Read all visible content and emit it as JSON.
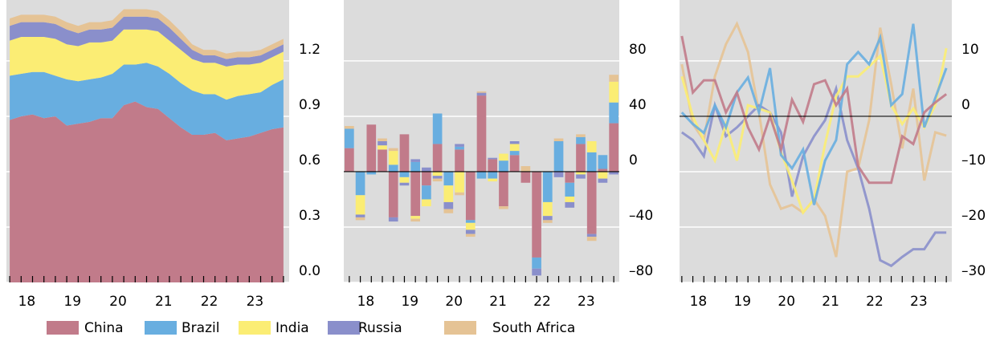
{
  "chart_data": [
    {
      "type": "stacked-area",
      "grid": true,
      "x": [
        2018.125,
        2018.375,
        2018.625,
        2018.875,
        2019.125,
        2019.375,
        2019.625,
        2019.875,
        2020.125,
        2020.375,
        2020.625,
        2020.875,
        2021.125,
        2021.375,
        2021.625,
        2021.875,
        2022.125,
        2022.375,
        2022.625,
        2022.875,
        2023.125,
        2023.375,
        2023.625,
        2023.875,
        2024.125
      ],
      "xlim": [
        2018,
        2024.25
      ],
      "xticks": [
        {
          "value": 2018.5,
          "label": "18"
        },
        {
          "value": 2019.5,
          "label": "19"
        },
        {
          "value": 2020.5,
          "label": "20"
        },
        {
          "value": 2021.5,
          "label": "21"
        },
        {
          "value": 2022.5,
          "label": "22"
        },
        {
          "value": 2023.5,
          "label": "23"
        }
      ],
      "ylim": [
        0,
        1.53
      ],
      "yticks": [
        {
          "value": 0,
          "label": "0.0"
        },
        0.3,
        0.6,
        0.9,
        1.2
      ],
      "series": [
        {
          "name": "China",
          "color": "#c17b8a",
          "values": [
            0.88,
            0.9,
            0.91,
            0.89,
            0.9,
            0.85,
            0.86,
            0.87,
            0.89,
            0.89,
            0.96,
            0.98,
            0.95,
            0.94,
            0.89,
            0.84,
            0.8,
            0.8,
            0.81,
            0.77,
            0.78,
            0.79,
            0.81,
            0.83,
            0.84
          ]
        },
        {
          "name": "Brazil",
          "color": "#68aee0",
          "values": [
            0.24,
            0.23,
            0.23,
            0.25,
            0.22,
            0.25,
            0.23,
            0.23,
            0.22,
            0.24,
            0.22,
            0.2,
            0.24,
            0.23,
            0.24,
            0.24,
            0.24,
            0.22,
            0.21,
            0.22,
            0.23,
            0.23,
            0.22,
            0.24,
            0.26
          ]
        },
        {
          "name": "India",
          "color": "#fbed74",
          "values": [
            0.19,
            0.2,
            0.19,
            0.19,
            0.2,
            0.19,
            0.19,
            0.2,
            0.19,
            0.18,
            0.19,
            0.19,
            0.18,
            0.19,
            0.18,
            0.18,
            0.17,
            0.17,
            0.17,
            0.18,
            0.17,
            0.16,
            0.16,
            0.15,
            0.15
          ]
        },
        {
          "name": "Russia",
          "color": "#8a8fcb",
          "values": [
            0.08,
            0.08,
            0.08,
            0.08,
            0.08,
            0.08,
            0.07,
            0.07,
            0.07,
            0.07,
            0.07,
            0.07,
            0.07,
            0.07,
            0.07,
            0.06,
            0.05,
            0.04,
            0.04,
            0.04,
            0.04,
            0.04,
            0.04,
            0.04,
            0.04
          ]
        },
        {
          "name": "South Africa",
          "color": "#e5c395",
          "values": [
            0.04,
            0.04,
            0.04,
            0.04,
            0.04,
            0.04,
            0.04,
            0.04,
            0.04,
            0.04,
            0.04,
            0.04,
            0.04,
            0.04,
            0.04,
            0.04,
            0.03,
            0.03,
            0.03,
            0.03,
            0.03,
            0.03,
            0.03,
            0.03,
            0.03
          ]
        }
      ]
    },
    {
      "type": "stacked-bar",
      "grid": true,
      "zero_line": true,
      "x": [
        2018.125,
        2018.375,
        2018.625,
        2018.875,
        2019.125,
        2019.375,
        2019.625,
        2019.875,
        2020.125,
        2020.375,
        2020.625,
        2020.875,
        2021.125,
        2021.375,
        2021.625,
        2021.875,
        2022.125,
        2022.375,
        2022.625,
        2022.875,
        2023.125,
        2023.375,
        2023.625,
        2023.875,
        2024.125
      ],
      "xlim": [
        2018,
        2024.25
      ],
      "xticks": [
        {
          "value": 2018.5,
          "label": "18"
        },
        {
          "value": 2019.5,
          "label": "19"
        },
        {
          "value": 2020.5,
          "label": "20"
        },
        {
          "value": 2021.5,
          "label": "21"
        },
        {
          "value": 2022.5,
          "label": "22"
        },
        {
          "value": 2023.5,
          "label": "23"
        }
      ],
      "ylim": [
        -80,
        124
      ],
      "yticks": [
        {
          "value": -80,
          "label": "–80"
        },
        {
          "value": -40,
          "label": "–40"
        },
        0,
        40,
        80
      ],
      "series": [
        {
          "color": "#c17b8a",
          "values": [
            17,
            0,
            34,
            16,
            -33,
            27,
            -32,
            -10,
            20,
            0,
            16,
            -35,
            55,
            9,
            -25,
            12,
            -8,
            -62,
            0,
            0,
            -8,
            20,
            -45,
            2,
            35
          ]
        },
        {
          "color": "#68aee0",
          "values": [
            14,
            -17,
            -2,
            0,
            5,
            -4,
            7,
            -10,
            22,
            -10,
            2,
            -2,
            -5,
            -5,
            8,
            3,
            0,
            -8,
            -22,
            22,
            -10,
            5,
            14,
            10,
            15
          ]
        },
        {
          "color": "#fbed74",
          "values": [
            0,
            -14,
            0,
            3,
            10,
            -4,
            -2,
            -5,
            -3,
            -12,
            -15,
            -5,
            0,
            -2,
            5,
            5,
            0,
            0,
            -10,
            0,
            -4,
            -2,
            8,
            -5,
            15
          ]
        },
        {
          "color": "#8a8fcb",
          "values": [
            0,
            -2,
            0,
            3,
            -3,
            -2,
            2,
            3,
            -2,
            -5,
            2,
            -3,
            2,
            1,
            0,
            2,
            0,
            -5,
            -3,
            -4,
            -4,
            -3,
            -2,
            -3,
            -2
          ]
        },
        {
          "color": "#e5c395",
          "values": [
            2,
            -2,
            0,
            2,
            2,
            0,
            -2,
            0,
            -2,
            -3,
            -2,
            -2,
            1,
            0,
            -2,
            0,
            4,
            0,
            -2,
            2,
            0,
            2,
            -3,
            0,
            5
          ]
        }
      ]
    },
    {
      "type": "line",
      "grid": true,
      "zero_line": true,
      "x": [
        2018.125,
        2018.375,
        2018.625,
        2018.875,
        2019.125,
        2019.375,
        2019.625,
        2019.875,
        2020.125,
        2020.375,
        2020.625,
        2020.875,
        2021.125,
        2021.375,
        2021.625,
        2021.875,
        2022.125,
        2022.375,
        2022.625,
        2022.875,
        2023.125,
        2023.375,
        2023.625,
        2023.875,
        2024.125
      ],
      "xlim": [
        2018,
        2024.25
      ],
      "xticks": [
        {
          "value": 2018.5,
          "label": "18"
        },
        {
          "value": 2019.5,
          "label": "19"
        },
        {
          "value": 2020.5,
          "label": "20"
        },
        {
          "value": 2021.5,
          "label": "21"
        },
        {
          "value": 2022.5,
          "label": "22"
        },
        {
          "value": 2023.5,
          "label": "23"
        }
      ],
      "ylim": [
        -30,
        21
      ],
      "yticks": [
        {
          "value": -30,
          "label": "–30"
        },
        {
          "value": -20,
          "label": "–20"
        },
        {
          "value": -10,
          "label": "–10"
        },
        0,
        10
      ],
      "series": [
        {
          "color": "#e5c395",
          "values": [
            9.4,
            -1.4,
            -4.3,
            7.2,
            13,
            16.7,
            11.6,
            0.7,
            -12.3,
            -16.7,
            -16,
            -17.4,
            -15,
            -18,
            -25.4,
            -10,
            -9.4,
            -0.7,
            16,
            5.8,
            -5.8,
            5,
            -11.6,
            -2.9,
            -3.5
          ]
        },
        {
          "color": "#8a8fcb",
          "values": [
            -2.9,
            -4.3,
            -7.2,
            2,
            -3.6,
            -2,
            0,
            2,
            0.7,
            -2.9,
            -14.5,
            -7.2,
            -3.6,
            -0.7,
            5,
            -4.3,
            -9.4,
            -16.7,
            -26,
            -27,
            -25.4,
            -24,
            -24,
            -21,
            -21
          ]
        },
        {
          "color": "#fbed74",
          "values": [
            7.2,
            0,
            -4.3,
            -8,
            -1.4,
            -8,
            2,
            1.4,
            0.7,
            -6.5,
            -11.6,
            -17.4,
            -15,
            -5,
            3.6,
            7.2,
            7.2,
            9,
            10.9,
            2,
            -1.4,
            1.4,
            -2,
            2,
            12.3
          ]
        },
        {
          "color": "#68aee0",
          "values": [
            0.7,
            -1.4,
            -3,
            2,
            -2,
            4.3,
            7,
            0.7,
            8.7,
            -7,
            -9.4,
            -6,
            -16,
            -8,
            -4.3,
            9.4,
            11.6,
            9.4,
            14.2,
            2,
            4,
            16.7,
            -2,
            3.3,
            8.7
          ]
        },
        {
          "color": "#c17b8a",
          "values": [
            14.5,
            4.3,
            6.5,
            6.5,
            0.7,
            4.3,
            -2,
            -6,
            0,
            -6,
            3,
            -1,
            5.8,
            6.5,
            2,
            5,
            -9,
            -12,
            -12,
            -12,
            -3.6,
            -5,
            0.7,
            2.5,
            4
          ]
        }
      ]
    }
  ]
}
